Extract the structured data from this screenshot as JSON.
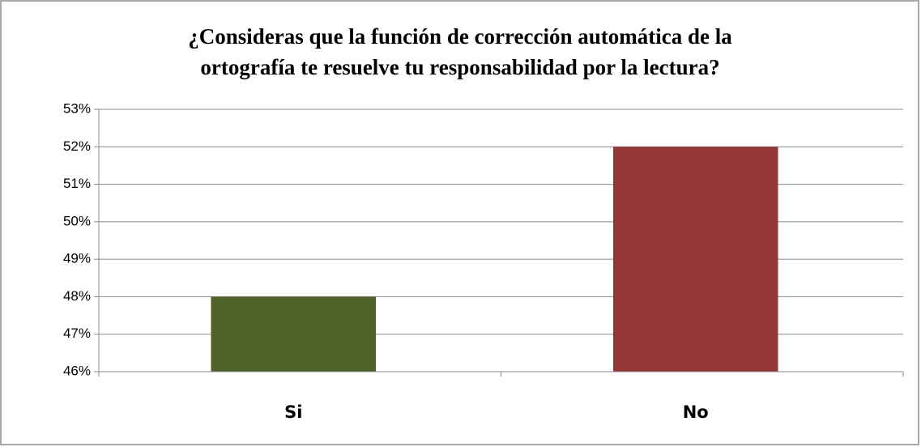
{
  "chart_data": {
    "type": "bar",
    "title": [
      "¿Consideras que la función de corrección automática de la",
      "ortografía te resuelve tu responsabilidad por la lectura?"
    ],
    "categories": [
      "Si",
      "No"
    ],
    "values": [
      48,
      52
    ],
    "colors": [
      "#4f6228",
      "#953735"
    ],
    "ylim": [
      46,
      53
    ],
    "yticks": [
      {
        "value": 46,
        "label": "46%"
      },
      {
        "value": 47,
        "label": "47%"
      },
      {
        "value": 48,
        "label": "48%"
      },
      {
        "value": 49,
        "label": "49%"
      },
      {
        "value": 50,
        "label": "50%"
      },
      {
        "value": 51,
        "label": "51%"
      },
      {
        "value": 52,
        "label": "52%"
      },
      {
        "value": 53,
        "label": "53%"
      }
    ],
    "grid": true
  }
}
